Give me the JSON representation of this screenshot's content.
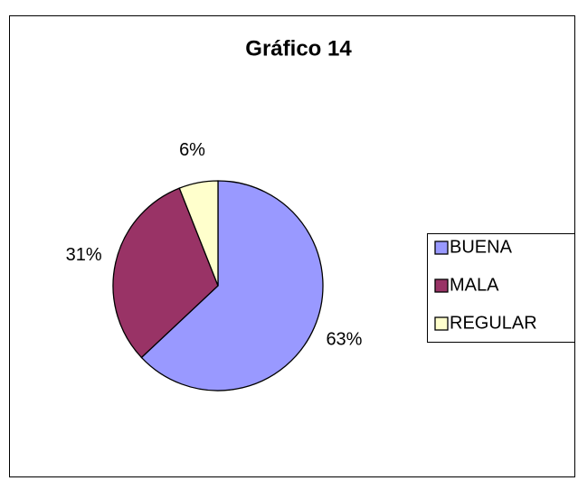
{
  "chart_data": {
    "type": "pie",
    "title": "Gráfico 14",
    "categories": [
      "BUENA",
      "MALA",
      "REGULAR"
    ],
    "values": [
      63,
      31,
      6
    ],
    "value_labels": [
      "63%",
      "31%",
      "6%"
    ],
    "colors": [
      "#9999ff",
      "#993366",
      "#ffffcc"
    ],
    "legend": "right"
  }
}
